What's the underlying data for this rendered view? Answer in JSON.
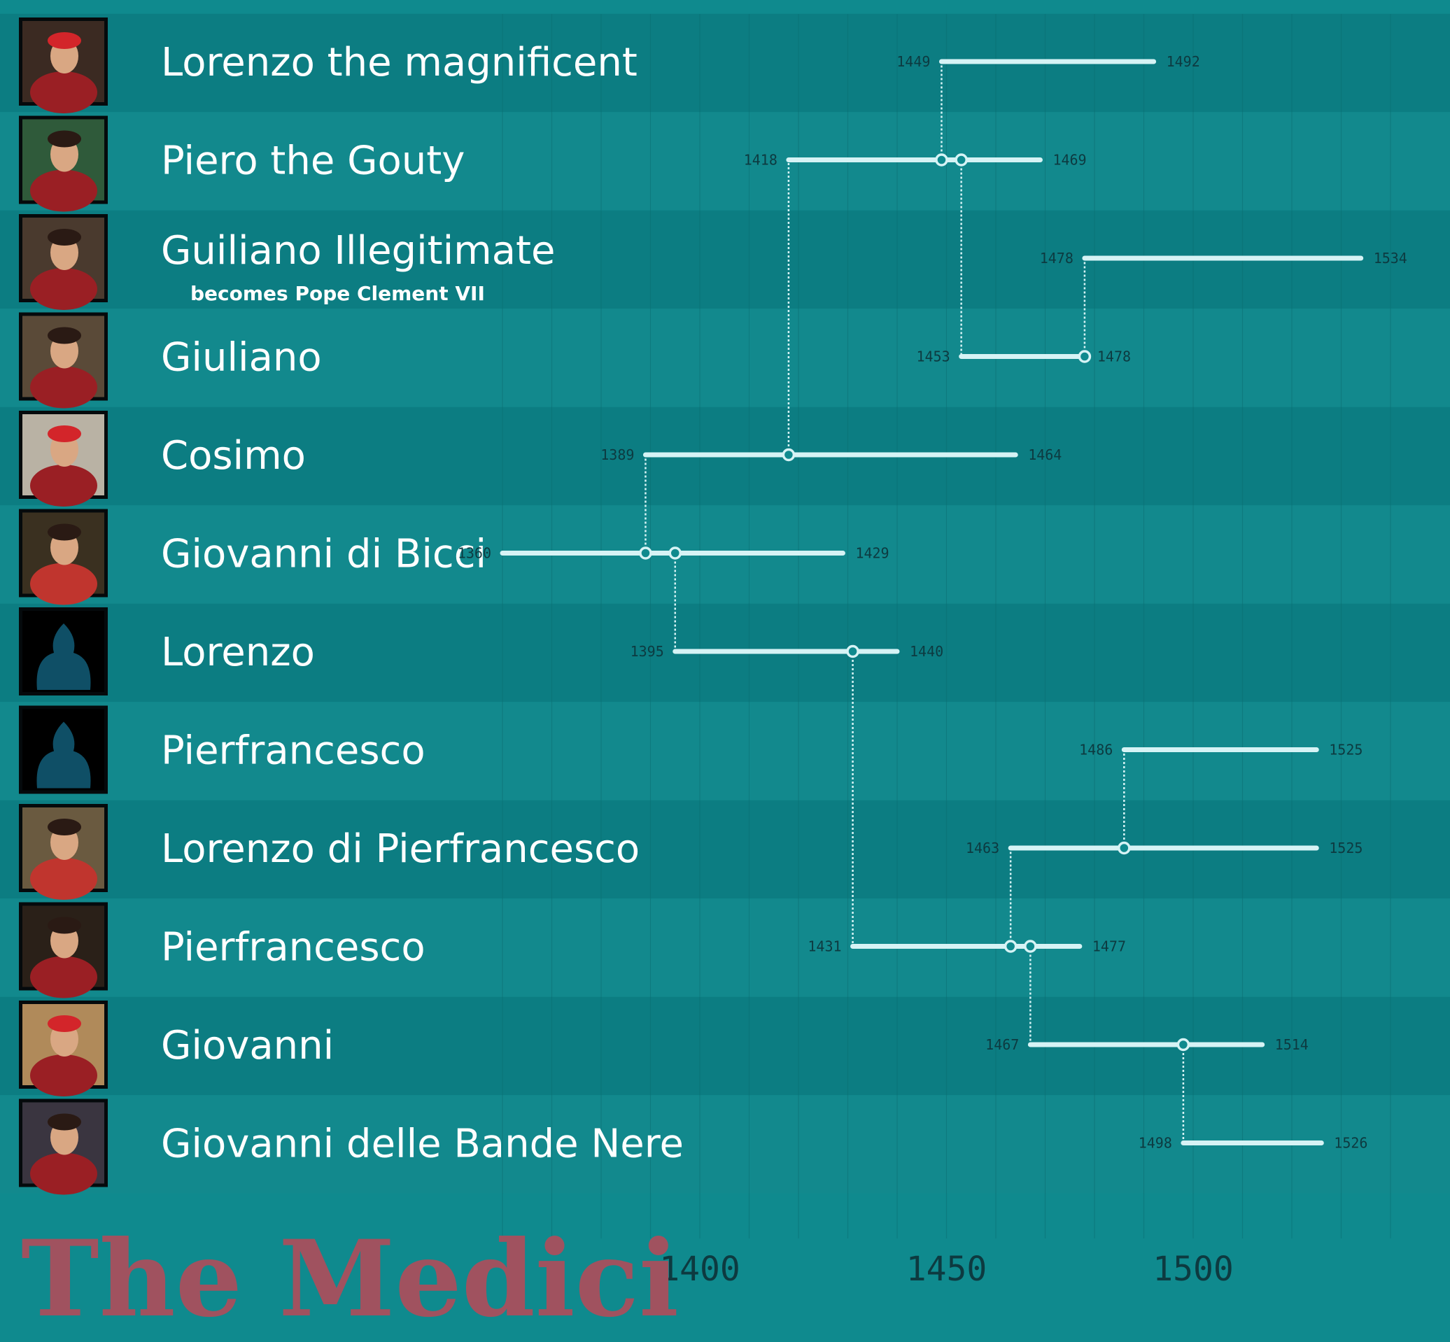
{
  "title": "The Medici",
  "colors": {
    "background": "#0f8a8e",
    "band_dark": "#0c7d82",
    "band_light": "#12898d",
    "line": "#d6f3f5",
    "year_text": "#0d3a40",
    "title": "#a0525f"
  },
  "chart_data": {
    "type": "timeline",
    "title": "The Medici",
    "x_axis": {
      "ticks": [
        1400,
        1450,
        1500
      ],
      "range": [
        1350,
        1550
      ]
    },
    "people": [
      {
        "name": "Lorenzo the magnificent",
        "birth": 1449,
        "death": 1492,
        "parent": 1
      },
      {
        "name": "Piero the Gouty",
        "birth": 1418,
        "death": 1469,
        "parent": 4
      },
      {
        "name": "Guiliano Illegitimate",
        "subtitle": "becomes Pope Clement VII",
        "birth": 1478,
        "death": 1534,
        "parent": 3
      },
      {
        "name": "Giuliano",
        "birth": 1453,
        "death": 1478,
        "parent": 1
      },
      {
        "name": "Cosimo",
        "birth": 1389,
        "death": 1464,
        "parent": 5
      },
      {
        "name": "Giovanni di Bicci",
        "birth": 1360,
        "death": 1429,
        "parent": null
      },
      {
        "name": "Lorenzo",
        "birth": 1395,
        "death": 1440,
        "parent": 5
      },
      {
        "name": "Pierfrancesco",
        "birth": 1486,
        "death": 1525,
        "parent": 8
      },
      {
        "name": "Lorenzo di Pierfrancesco",
        "birth": 1463,
        "death": 1525,
        "parent": 9
      },
      {
        "name": "Pierfrancesco",
        "birth": 1431,
        "death": 1477,
        "parent": 6
      },
      {
        "name": "Giovanni",
        "birth": 1467,
        "death": 1514,
        "parent": 9
      },
      {
        "name": "Giovanni delle Bande Nere",
        "birth": 1498,
        "death": 1526,
        "parent": 10
      }
    ]
  }
}
